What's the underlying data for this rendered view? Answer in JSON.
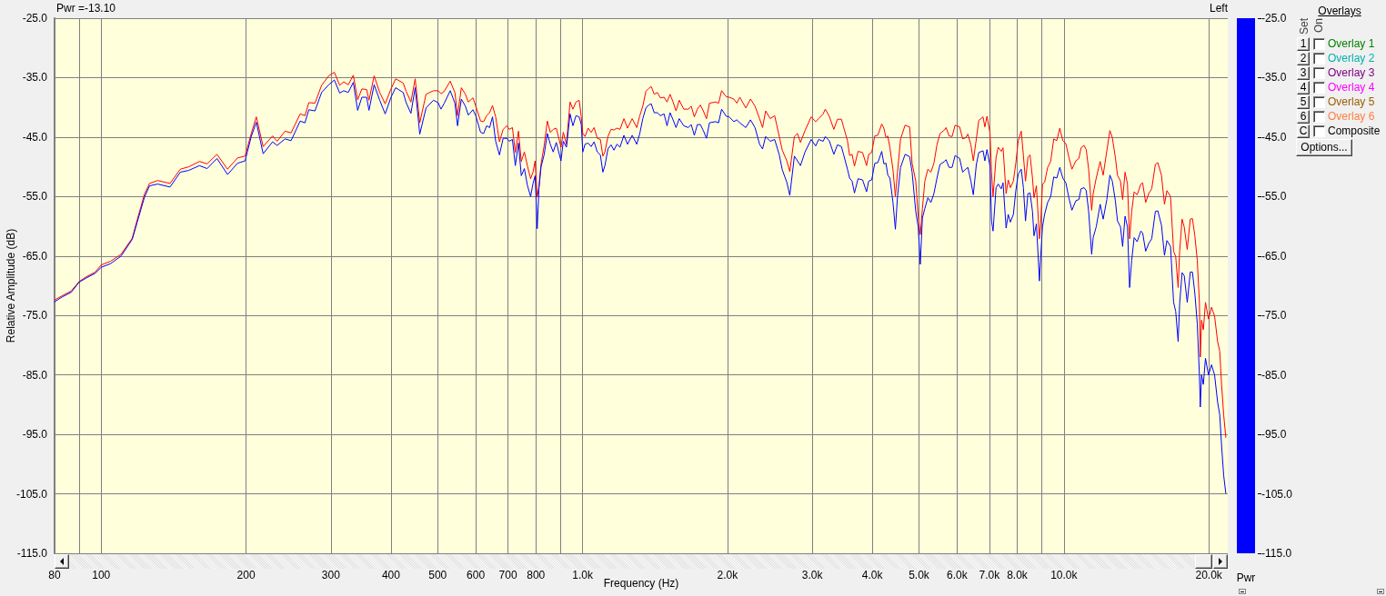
{
  "chart_data": [
    {
      "type": "line",
      "xlabel": "Frequency (Hz)",
      "ylabel": "Relative Amplitude (dB)",
      "annotations": [
        "Pwr =-13.10",
        "Left",
        "Overlays",
        "Set",
        "On",
        "1",
        "Overlay 1",
        "2",
        "Overlay 2",
        "3",
        "Overlay 3",
        "4",
        "Overlay 4",
        "5",
        "Overlay 5",
        "6",
        "Overlay 6",
        "C",
        "Composite",
        "Options..."
      ],
      "log": "x",
      "grid": true,
      "xlim": [
        80,
        21900
      ],
      "ylim": [
        -115,
        -25
      ],
      "xticks": [
        80,
        {
          "value": 90,
          "label": null
        },
        100,
        200,
        300,
        400,
        500,
        600,
        700,
        800,
        {
          "value": 900,
          "label": null
        },
        {
          "value": 1000,
          "label": "1.0k"
        },
        {
          "value": 2000,
          "label": "2.0k"
        },
        {
          "value": 3000,
          "label": "3.0k"
        },
        {
          "value": 4000,
          "label": "4.0k"
        },
        {
          "value": 5000,
          "label": "5.0k"
        },
        {
          "value": 6000,
          "label": "6.0k"
        },
        {
          "value": 7000,
          "label": "7.0k"
        },
        {
          "value": 8000,
          "label": "8.0k"
        },
        {
          "value": 9000,
          "label": null
        },
        {
          "value": 10000,
          "label": "10.0k"
        },
        {
          "value": 20000,
          "label": "20.0k"
        }
      ],
      "yticks": [
        {
          "value": -25,
          "label": "-25.0"
        },
        {
          "value": -35,
          "label": "-35.0"
        },
        {
          "value": -45,
          "label": "-45.0"
        },
        {
          "value": -55,
          "label": "-55.0"
        },
        {
          "value": -65,
          "label": "-65.0"
        },
        {
          "value": -75,
          "label": "-75.0"
        },
        {
          "value": -85,
          "label": "-85.0"
        },
        {
          "value": -95,
          "label": "-95.0"
        },
        {
          "value": -105,
          "label": "-105.0"
        },
        {
          "value": -115,
          "label": "-115.0"
        }
      ],
      "x": [
        80,
        82.9,
        86.6,
        90,
        93.1,
        97.2,
        100,
        104.5,
        110,
        116,
        119,
        123,
        126,
        131,
        139,
        146,
        152,
        160,
        166,
        174,
        183,
        192,
        199,
        205,
        210,
        217,
        227,
        232,
        241,
        248,
        259,
        265,
        270,
        278,
        287,
        297,
        305,
        313,
        319,
        326,
        334,
        341,
        348,
        356,
        360,
        369,
        379,
        389,
        400,
        409,
        424,
        430,
        440,
        449,
        459,
        473,
        490,
        501,
        508,
        516,
        531,
        543,
        550,
        560,
        571,
        579,
        592,
        600,
        614,
        623,
        632,
        641,
        650,
        660,
        672,
        684,
        696,
        704,
        715,
        725,
        736,
        746,
        757,
        768,
        780,
        789,
        797,
        805,
        812,
        820,
        832,
        845,
        857,
        869,
        882,
        902,
        912,
        926,
        942,
        955,
        969,
        984,
        994,
        1001,
        1012,
        1027,
        1042,
        1057,
        1073,
        1089,
        1102,
        1113,
        1129,
        1146,
        1162,
        1179,
        1196,
        1219,
        1240,
        1268,
        1296,
        1315,
        1334,
        1354,
        1373,
        1389,
        1409,
        1430,
        1451,
        1477,
        1498,
        1520,
        1542,
        1564,
        1588,
        1623,
        1659,
        1682,
        1707,
        1732,
        1757,
        1782,
        1809,
        1835,
        1890,
        1917,
        1945,
        1988,
        2017,
        2062,
        2092,
        2122,
        2184,
        2233,
        2282,
        2332,
        2366,
        2401,
        2454,
        2507,
        2563,
        2600,
        2657,
        2695,
        2755,
        2796,
        2836,
        2899,
        2985,
        3050,
        3094,
        3162,
        3194,
        3255,
        3327,
        3385,
        3450,
        3485,
        3551,
        3588,
        3630,
        3672,
        3736,
        3818,
        3891,
        3931,
        3988,
        4047,
        4106,
        4184,
        4227,
        4270,
        4307,
        4351,
        4415,
        4466,
        4512,
        4578,
        4679,
        4782,
        4838,
        4923,
        4981,
        5031,
        5083,
        5142,
        5217,
        5294,
        5370,
        5449,
        5528,
        5650,
        5691,
        5774,
        5858,
        5943,
        6074,
        6163,
        6253,
        6317,
        6409,
        6484,
        6579,
        6656,
        6793,
        6852,
        6922,
        7023,
        7074,
        7126,
        7230,
        7304,
        7411,
        7475,
        7585,
        7662,
        7741,
        7854,
        7946,
        8038,
        8156,
        8239,
        8323,
        8420,
        8506,
        8605,
        8668,
        8769,
        8897,
        8949,
        9027,
        9119,
        9253,
        9388,
        9526,
        9665,
        9806,
        9949,
        10095,
        10242,
        10392,
        10590,
        10745,
        10855,
        11014,
        11127,
        11257,
        11421,
        11505,
        11673,
        11895,
        12069,
        12281,
        12461,
        12607,
        12791,
        12921,
        13110,
        13244,
        13399,
        13555,
        13694,
        13833,
        13995,
        14199,
        14449,
        14575,
        14788,
        15004,
        15223,
        15490,
        15672,
        15947,
        16180,
        16370,
        16657,
        16901,
        17073,
        17273,
        17399,
        17602,
        17782,
        18042,
        18306,
        18494,
        18710,
        18929,
        19122,
        19206,
        19318,
        19487,
        19685,
        19974,
        20266,
        20562,
        20863,
        21076,
        21261,
        21478,
        21697
      ],
      "series": [
        {
          "color": "#ff0000",
          "values": [
            -72.4,
            -71.7,
            -70.9,
            -69.3,
            -68.5,
            -67.7,
            -66.5,
            -65.9,
            -64.7,
            -62.0,
            -58.7,
            -54.6,
            -52.8,
            -52.3,
            -52.8,
            -50.4,
            -50.0,
            -49.1,
            -49.5,
            -47.9,
            -50.4,
            -48.5,
            -48.2,
            -44.4,
            -41.6,
            -46.6,
            -44.8,
            -45.7,
            -44.0,
            -44.3,
            -41.1,
            -41.4,
            -39.2,
            -39.3,
            -36.3,
            -34.7,
            -34.1,
            -36.3,
            -35.7,
            -36.2,
            -34.6,
            -38.7,
            -36.9,
            -37.0,
            -38.8,
            -34.7,
            -37.5,
            -39.4,
            -36.9,
            -35.2,
            -35.9,
            -37.3,
            -39.1,
            -35.2,
            -42.6,
            -37.8,
            -37.2,
            -37.2,
            -37.7,
            -37.3,
            -35.6,
            -37.5,
            -41.4,
            -36.7,
            -37.8,
            -39.1,
            -38.4,
            -39.8,
            -42.3,
            -42.4,
            -41.4,
            -40.9,
            -39.7,
            -41.6,
            -45.8,
            -43.7,
            -43.1,
            -43.7,
            -43.4,
            -47.6,
            -44.0,
            -49.1,
            -47.5,
            -49.8,
            -52.0,
            -50.9,
            -49.0,
            -55.1,
            -53.3,
            -49.5,
            -46.5,
            -42.3,
            -44.2,
            -43.7,
            -43.5,
            -46.7,
            -44.2,
            -46.2,
            -39.1,
            -40.3,
            -39.1,
            -38.8,
            -41.6,
            -44.4,
            -44.9,
            -43.5,
            -44.2,
            -43.4,
            -45.2,
            -45.4,
            -48.2,
            -47.5,
            -44.9,
            -43.7,
            -43.8,
            -43.5,
            -43.7,
            -41.9,
            -43.5,
            -41.9,
            -43.4,
            -41.4,
            -39.8,
            -37.3,
            -36.8,
            -36.5,
            -37.8,
            -37.5,
            -38.4,
            -38.3,
            -39.1,
            -37.8,
            -39.1,
            -40.6,
            -38.8,
            -40.3,
            -40.3,
            -39.8,
            -41.6,
            -40.3,
            -39.6,
            -40.6,
            -41.9,
            -39.3,
            -39.1,
            -39.3,
            -37.2,
            -38.2,
            -38.3,
            -38.6,
            -39.3,
            -38.3,
            -40.1,
            -38.6,
            -39.8,
            -41.9,
            -43.4,
            -40.6,
            -41.9,
            -41.4,
            -44.9,
            -47.2,
            -49.0,
            -50.8,
            -44.9,
            -44.4,
            -45.9,
            -43.9,
            -41.6,
            -42.4,
            -41.9,
            -41.1,
            -40.3,
            -41.5,
            -43.7,
            -42.0,
            -42.0,
            -43.3,
            -45.6,
            -48.1,
            -47.9,
            -49.9,
            -47.4,
            -47.6,
            -49.8,
            -47.9,
            -47.6,
            -44.8,
            -44.7,
            -42.8,
            -43.5,
            -45.1,
            -44.8,
            -46.8,
            -50.5,
            -55.0,
            -50.9,
            -45.3,
            -43.0,
            -43.3,
            -49.4,
            -52.4,
            -58.3,
            -61.4,
            -57.0,
            -52.4,
            -50.4,
            -50.9,
            -49.4,
            -46.3,
            -44.4,
            -43.8,
            -43.4,
            -44.8,
            -44.9,
            -43.0,
            -43.3,
            -45.3,
            -45.1,
            -44.5,
            -46.3,
            -49.0,
            -45.3,
            -42.2,
            -41.6,
            -43.3,
            -41.5,
            -44.3,
            -50.9,
            -55.0,
            -48.4,
            -46.7,
            -47.4,
            -46.8,
            -54.5,
            -52.2,
            -53.5,
            -52.4,
            -49.4,
            -45.6,
            -44.0,
            -48.1,
            -52.4,
            -48.4,
            -48.0,
            -51.9,
            -55.2,
            -53.2,
            -62.1,
            -59.6,
            -52.9,
            -52.6,
            -50.1,
            -49.1,
            -45.3,
            -45.6,
            -43.5,
            -45.6,
            -46.1,
            -48.4,
            -50.4,
            -49.0,
            -48.6,
            -46.8,
            -46.4,
            -47.1,
            -50.4,
            -57.3,
            -54.5,
            -51.9,
            -49.1,
            -51.4,
            -47.3,
            -43.9,
            -45.1,
            -48.4,
            -51.4,
            -52.4,
            -55.5,
            -50.9,
            -52.9,
            -62.1,
            -57.5,
            -54.2,
            -54.7,
            -52.9,
            -52.7,
            -56.0,
            -54.5,
            -53.7,
            -49.6,
            -49.3,
            -51.4,
            -56.3,
            -54.0,
            -55.0,
            -64.2,
            -65.1,
            -70.3,
            -64.2,
            -58.8,
            -60.1,
            -63.9,
            -58.8,
            -58.7,
            -61.6,
            -65.7,
            -72.8,
            -82.0,
            -75.8,
            -77.4,
            -72.8,
            -75.6,
            -73.6,
            -75.1,
            -79.4,
            -81.0,
            -86.6,
            -91.7,
            -95.5
          ]
        },
        {
          "color": "#0000ff",
          "values": [
            -72.7,
            -71.9,
            -71.1,
            -69.4,
            -68.7,
            -67.9,
            -66.9,
            -66.3,
            -65.0,
            -62.2,
            -59.1,
            -55.1,
            -53.2,
            -52.9,
            -53.4,
            -50.9,
            -50.6,
            -49.8,
            -50.3,
            -48.6,
            -51.3,
            -49.4,
            -49.0,
            -44.9,
            -42.5,
            -47.8,
            -45.8,
            -46.4,
            -45.3,
            -45.6,
            -42.3,
            -42.6,
            -40.4,
            -40.6,
            -37.5,
            -36.2,
            -35.4,
            -37.6,
            -37.2,
            -37.5,
            -35.8,
            -40.5,
            -38.3,
            -38.3,
            -40.5,
            -36.2,
            -38.8,
            -41.1,
            -38.3,
            -36.7,
            -37.5,
            -39.2,
            -41.0,
            -36.7,
            -44.5,
            -40.1,
            -38.8,
            -39.2,
            -40.3,
            -39.3,
            -37.2,
            -39.3,
            -43.1,
            -38.6,
            -39.8,
            -41.3,
            -40.4,
            -41.4,
            -44.2,
            -44.4,
            -43.1,
            -43.4,
            -41.6,
            -45.7,
            -48.0,
            -45.2,
            -45.2,
            -45.7,
            -45.4,
            -49.8,
            -46.0,
            -51.5,
            -50.3,
            -53.1,
            -55.0,
            -52.8,
            -51.5,
            -60.4,
            -53.5,
            -50.0,
            -48.0,
            -44.4,
            -46.2,
            -47.5,
            -45.9,
            -49.0,
            -45.7,
            -46.7,
            -41.1,
            -43.1,
            -41.4,
            -41.6,
            -42.9,
            -47.5,
            -46.2,
            -46.0,
            -46.6,
            -45.8,
            -47.5,
            -48.0,
            -50.9,
            -49.8,
            -47.0,
            -46.3,
            -47.2,
            -46.2,
            -46.7,
            -44.7,
            -46.2,
            -44.7,
            -46.2,
            -44.4,
            -41.9,
            -40.1,
            -39.6,
            -39.4,
            -40.9,
            -40.9,
            -41.4,
            -41.1,
            -43.1,
            -40.9,
            -42.1,
            -43.4,
            -41.9,
            -43.1,
            -43.4,
            -42.9,
            -44.7,
            -42.9,
            -42.9,
            -43.9,
            -45.2,
            -42.6,
            -42.4,
            -42.6,
            -40.3,
            -41.5,
            -41.6,
            -42.4,
            -42.1,
            -42.6,
            -43.4,
            -42.1,
            -43.4,
            -46.2,
            -47.0,
            -44.9,
            -45.7,
            -45.4,
            -48.0,
            -50.5,
            -52.6,
            -54.8,
            -48.2,
            -49.0,
            -49.8,
            -47.5,
            -45.4,
            -46.5,
            -45.4,
            -45.7,
            -44.9,
            -45.6,
            -47.9,
            -46.3,
            -46.6,
            -47.9,
            -50.4,
            -51.9,
            -52.4,
            -54.4,
            -52.0,
            -52.2,
            -54.2,
            -52.4,
            -52.2,
            -49.4,
            -49.3,
            -47.4,
            -49.5,
            -49.4,
            -51.4,
            -51.9,
            -56.0,
            -60.5,
            -55.0,
            -50.1,
            -47.9,
            -48.3,
            -50.9,
            -57.5,
            -60.1,
            -66.4,
            -58.6,
            -57.0,
            -55.2,
            -56.0,
            -54.5,
            -51.9,
            -49.6,
            -49.1,
            -48.8,
            -50.1,
            -50.1,
            -48.1,
            -48.6,
            -50.9,
            -50.4,
            -50.1,
            -52.4,
            -54.7,
            -49.6,
            -47.6,
            -47.3,
            -49.0,
            -47.1,
            -49.9,
            -59.1,
            -60.8,
            -53.5,
            -52.9,
            -53.7,
            -52.7,
            -60.3,
            -58.0,
            -59.3,
            -58.0,
            -54.0,
            -51.2,
            -50.4,
            -53.5,
            -59.1,
            -54.5,
            -54.4,
            -57.5,
            -61.6,
            -59.6,
            -69.2,
            -65.2,
            -60.1,
            -58.0,
            -56.0,
            -55.0,
            -51.7,
            -51.9,
            -50.1,
            -51.9,
            -52.7,
            -55.2,
            -57.3,
            -55.7,
            -55.5,
            -53.7,
            -53.5,
            -54.0,
            -57.5,
            -64.7,
            -61.9,
            -60.1,
            -56.3,
            -58.8,
            -55.5,
            -51.4,
            -52.4,
            -55.7,
            -59.1,
            -60.1,
            -63.4,
            -58.3,
            -60.1,
            -70.3,
            -65.7,
            -61.9,
            -62.6,
            -60.8,
            -61.1,
            -64.2,
            -62.9,
            -62.1,
            -57.5,
            -57.4,
            -59.8,
            -64.9,
            -62.4,
            -63.4,
            -72.8,
            -74.3,
            -79.4,
            -73.0,
            -67.8,
            -68.3,
            -72.8,
            -67.7,
            -67.7,
            -71.3,
            -76.4,
            -85.0,
            -90.4,
            -85.0,
            -86.6,
            -82.2,
            -85.0,
            -83.3,
            -85.0,
            -89.6,
            -91.7,
            -96.8,
            -101.9,
            -104.9
          ]
        }
      ]
    },
    {
      "type": "bar",
      "xlabel": "Pwr",
      "categories": [
        null
      ],
      "values": [
        -25
      ],
      "color": "#0000ff",
      "ylim": [
        -115,
        -25
      ],
      "yticks": [
        {
          "value": -25,
          "label": "-25.0"
        },
        {
          "value": -35,
          "label": "-35.0"
        },
        {
          "value": -45,
          "label": "-45.0"
        },
        {
          "value": -55,
          "label": "-55.0"
        },
        {
          "value": -65,
          "label": "-65.0"
        },
        {
          "value": -75,
          "label": "-75.0"
        },
        {
          "value": -85,
          "label": "-85.0"
        },
        {
          "value": -95,
          "label": "-95.0"
        },
        {
          "value": -105,
          "label": "-105.0"
        },
        {
          "value": -115,
          "label": "-115.0"
        }
      ]
    }
  ]
}
